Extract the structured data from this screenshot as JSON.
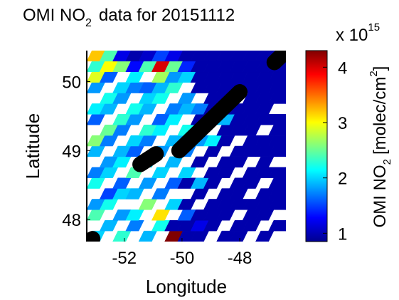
{
  "chart_data": {
    "type": "heatmap",
    "title_main": "OMI NO",
    "title_sub": "2",
    "title_rest": "data for 20151112",
    "xlabel": "Longitude",
    "ylabel": "Latitude",
    "xlim": [
      -53.3,
      -46.4
    ],
    "ylim": [
      47.68,
      50.45
    ],
    "xticks": [
      -52,
      -50,
      -48
    ],
    "xtick_labels": [
      "-52",
      "-50",
      "-48"
    ],
    "yticks": [
      48,
      49,
      50
    ],
    "ytick_labels": [
      "48",
      "49",
      "50"
    ],
    "colorbar": {
      "label_main": "OMI NO",
      "label_sub": "2",
      "label_rest": "[molec/cm",
      "label_sup": "2",
      "label_close": "]",
      "multiplier_base": "x 10",
      "multiplier_exp": "15",
      "range": [
        0.85,
        4.3
      ],
      "ticks": [
        1,
        2,
        3,
        4
      ],
      "tick_labels": [
        "1",
        "2",
        "3",
        "4"
      ],
      "colormap": "jet"
    },
    "swath_columns": [
      {
        "lon": [
          -53.3,
          -52.85
        ],
        "vals": [
          2.0,
          null,
          2.4,
          1.8,
          null,
          2.2,
          1.7,
          null,
          1.9,
          2.6,
          null,
          1.6,
          2.1,
          null,
          1.8,
          2.9,
          2.3,
          3.2
        ]
      },
      {
        "lon": [
          -52.85,
          -52.4
        ],
        "vals": [
          null,
          1.9,
          null,
          2.2,
          1.5,
          null,
          2.0,
          1.8,
          null,
          1.7,
          2.5,
          null,
          1.9,
          2.2,
          null,
          1.6,
          3.0,
          2.4
        ]
      },
      {
        "lon": [
          -52.4,
          -51.95
        ],
        "vals": [
          2.3,
          null,
          1.8,
          null,
          2.0,
          1.6,
          null,
          2.1,
          1.9,
          null,
          1.7,
          2.3,
          null,
          1.8,
          2.0,
          null,
          2.6,
          1.2
        ]
      },
      {
        "lon": [
          -51.95,
          -51.5
        ],
        "vals": [
          null,
          1.7,
          2.1,
          null,
          1.9,
          null,
          2.4,
          null,
          1.6,
          2.0,
          null,
          1.8,
          2.2,
          null,
          1.7,
          2.1,
          1.3,
          1.0
        ]
      },
      {
        "lon": [
          -51.5,
          -51.05
        ],
        "vals": [
          1.9,
          null,
          null,
          2.6,
          null,
          1.8,
          null,
          2.0,
          null,
          1.7,
          2.3,
          null,
          1.9,
          2.0,
          1.6,
          null,
          2.4,
          1.1
        ]
      },
      {
        "lon": [
          -51.05,
          -50.6
        ],
        "vals": [
          null,
          2.2,
          3.1,
          null,
          1.7,
          null,
          2.0,
          null,
          1.8,
          null,
          2.1,
          1.6,
          null,
          2.2,
          1.9,
          2.7,
          4.0,
          1.5
        ]
      },
      {
        "lon": [
          -50.6,
          -50.15
        ],
        "vals": [
          4.3,
          1.0,
          null,
          2.0,
          null,
          1.6,
          null,
          1.9,
          null,
          1.9,
          null,
          2.1,
          1.7,
          null,
          2.3,
          1.8,
          2.5,
          1.2
        ]
      },
      {
        "lon": [
          -50.15,
          -49.7
        ],
        "vals": [
          1.0,
          1.0,
          1.6,
          1.0,
          null,
          1.0,
          2.0,
          null,
          1.7,
          null,
          2.2,
          null,
          1.9,
          1.8,
          null,
          2.0,
          1.4,
          1.0
        ]
      },
      {
        "lon": [
          -49.7,
          -49.25
        ],
        "vals": [
          1.0,
          1.2,
          1.0,
          null,
          1.0,
          1.9,
          null,
          1.0,
          null,
          1.8,
          null,
          1.0,
          1.7,
          null,
          1.0,
          1.0,
          1.0,
          1.0
        ]
      },
      {
        "lon": [
          -49.25,
          -48.8
        ],
        "vals": [
          null,
          1.0,
          1.0,
          1.0,
          null,
          1.0,
          1.0,
          null,
          1.0,
          2.1,
          null,
          1.0,
          1.0,
          1.0,
          1.0,
          1.0,
          1.0,
          1.0
        ]
      },
      {
        "lon": [
          -48.8,
          -48.35
        ],
        "vals": [
          1.0,
          null,
          1.0,
          1.0,
          1.0,
          null,
          1.0,
          1.0,
          null,
          1.0,
          1.0,
          1.9,
          1.0,
          1.0,
          1.0,
          1.0,
          1.0,
          1.0
        ]
      },
      {
        "lon": [
          -48.35,
          -47.9
        ],
        "vals": [
          1.0,
          1.0,
          null,
          1.0,
          1.0,
          1.0,
          null,
          1.0,
          1.0,
          null,
          1.0,
          1.0,
          1.0,
          null,
          1.0,
          1.0,
          1.0,
          1.0
        ]
      },
      {
        "lon": [
          -47.9,
          -47.45
        ],
        "vals": [
          null,
          1.0,
          1.0,
          1.0,
          null,
          1.0,
          1.0,
          null,
          1.0,
          1.0,
          1.0,
          1.0,
          1.0,
          1.0,
          1.0,
          1.0,
          1.0,
          1.0
        ]
      },
      {
        "lon": [
          -47.45,
          -47.0
        ],
        "vals": [
          1.0,
          null,
          1.0,
          1.0,
          1.0,
          null,
          1.0,
          1.0,
          1.0,
          1.0,
          null,
          1.0,
          1.0,
          1.0,
          1.0,
          1.0,
          1.0,
          1.0
        ]
      },
      {
        "lon": [
          -47.0,
          -46.4
        ],
        "vals": [
          null,
          1.0,
          null,
          1.0,
          1.0,
          1.0,
          1.0,
          null,
          1.0,
          1.0,
          1.0,
          1.0,
          null,
          1.0,
          1.0,
          1.0,
          1.0,
          1.0
        ]
      }
    ],
    "coast_segments": [
      {
        "name": "coast-segment-sw",
        "lon": [
          -53.25,
          -53.1
        ],
        "lat": [
          47.68,
          47.72
        ]
      },
      {
        "name": "coast-segment-mid-west",
        "lon": [
          -51.45,
          -50.9
        ],
        "lat": [
          48.8,
          48.95
        ]
      },
      {
        "name": "coast-segment-main",
        "lon": [
          -50.1,
          -48.0
        ],
        "lat": [
          49.0,
          49.85
        ]
      },
      {
        "name": "coast-segment-ne",
        "lon": [
          -46.8,
          -46.45
        ],
        "lat": [
          50.28,
          50.42
        ]
      }
    ]
  }
}
